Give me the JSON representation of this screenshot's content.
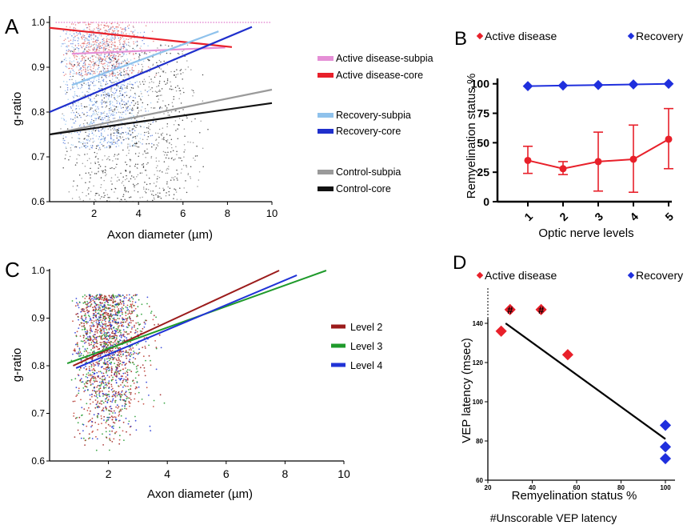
{
  "colors": {
    "ad_subpia": "#e58fd6",
    "ad_core": "#e8202a",
    "rec_subpia": "#8fc2ec",
    "rec_core": "#1f2fcc",
    "ctrl_subpia": "#9a9a9a",
    "ctrl_core": "#111111",
    "level2": "#9b1b1b",
    "level3": "#1f9a2b",
    "level4": "#2033d6",
    "active_marker": "#e8202a",
    "recovery_marker": "#1f2fdd"
  },
  "chart_data": [
    {
      "panel": "A",
      "type": "scatter",
      "xlabel": "Axon diameter (µm)",
      "ylabel": "g-ratio",
      "xlim": [
        0,
        10
      ],
      "ylim": [
        0.6,
        1.0
      ],
      "xticks": [
        "2",
        "4",
        "6",
        "8",
        "10"
      ],
      "yticks": [
        "0.6",
        "0.7",
        "0.8",
        "0.9",
        "1.0"
      ],
      "legend_position": "right",
      "series": [
        {
          "name": "Active disease-subpia",
          "fit_x": [
            1,
            7.9
          ],
          "fit_y": [
            0.93,
            0.944
          ]
        },
        {
          "name": "Active disease-core",
          "fit_x": [
            0,
            8.2
          ],
          "fit_y": [
            0.988,
            0.945
          ]
        },
        {
          "name": "Recovery-subpia",
          "fit_x": [
            1,
            7.6
          ],
          "fit_y": [
            0.86,
            0.98
          ]
        },
        {
          "name": "Recovery-core",
          "fit_x": [
            0,
            9.1
          ],
          "fit_y": [
            0.8,
            0.99
          ]
        },
        {
          "name": "Control-subpia",
          "fit_x": [
            0,
            10
          ],
          "fit_y": [
            0.75,
            0.85
          ]
        },
        {
          "name": "Control-core",
          "fit_x": [
            0,
            10
          ],
          "fit_y": [
            0.75,
            0.82
          ]
        }
      ]
    },
    {
      "panel": "B",
      "type": "line",
      "xlabel": "Optic nerve levels",
      "ylabel": "Remyelination status %",
      "categories": [
        "1",
        "2",
        "3",
        "4",
        "5"
      ],
      "ylim": [
        0,
        110
      ],
      "yticks": [
        "0",
        "25",
        "50",
        "75",
        "100"
      ],
      "legend_position": "top",
      "series": [
        {
          "name": "Active disease",
          "values": [
            35,
            28,
            34,
            36,
            53
          ],
          "err_low": [
            24,
            23,
            9,
            8,
            28
          ],
          "err_high": [
            47,
            34,
            59,
            65,
            79
          ]
        },
        {
          "name": "Recovery",
          "values": [
            98,
            98.5,
            99,
            99.5,
            100
          ],
          "err_low": [
            98,
            98.5,
            99,
            99.5,
            100
          ],
          "err_high": [
            98,
            98.5,
            99,
            99.5,
            100
          ]
        }
      ]
    },
    {
      "panel": "C",
      "type": "scatter",
      "xlabel": "Axon diameter (µm)",
      "ylabel": "g-ratio",
      "xlim": [
        0,
        10
      ],
      "ylim": [
        0.6,
        1.0
      ],
      "xticks": [
        "2",
        "4",
        "6",
        "8",
        "10"
      ],
      "yticks": [
        "0.6",
        "0.7",
        "0.8",
        "0.9",
        "1.0"
      ],
      "legend_position": "right",
      "series": [
        {
          "name": "Level 2",
          "fit_x": [
            0.8,
            7.8
          ],
          "fit_y": [
            0.8,
            1.0
          ]
        },
        {
          "name": "Level 3",
          "fit_x": [
            0.6,
            9.4
          ],
          "fit_y": [
            0.805,
            1.0
          ]
        },
        {
          "name": "Level 4",
          "fit_x": [
            0.9,
            8.4
          ],
          "fit_y": [
            0.795,
            0.99
          ]
        }
      ]
    },
    {
      "panel": "D",
      "type": "scatter",
      "xlabel": "Remyelination status %",
      "ylabel": "VEP latency (msec)",
      "xlim": [
        20,
        105
      ],
      "ylim": [
        60,
        152
      ],
      "xticks": [
        "20",
        "40",
        "60",
        "80",
        "100"
      ],
      "yticks": [
        "60",
        "80",
        "100",
        "120",
        "140"
      ],
      "legend_position": "top",
      "footnote": "#Unscorable VEP latency",
      "series": [
        {
          "name": "Active disease",
          "x": [
            26,
            56,
            30,
            44
          ],
          "y": [
            136,
            124,
            147,
            147
          ],
          "unscorable": [
            false,
            false,
            true,
            true
          ]
        },
        {
          "name": "Recovery",
          "x": [
            100,
            100,
            100
          ],
          "y": [
            88,
            77,
            71
          ]
        }
      ],
      "fit": {
        "x": [
          28,
          100
        ],
        "y": [
          140,
          81
        ]
      }
    }
  ],
  "labels": {
    "panel_a": "A",
    "panel_b": "B",
    "panel_c": "C",
    "panel_d": "D",
    "unscorable_mark": "#"
  }
}
